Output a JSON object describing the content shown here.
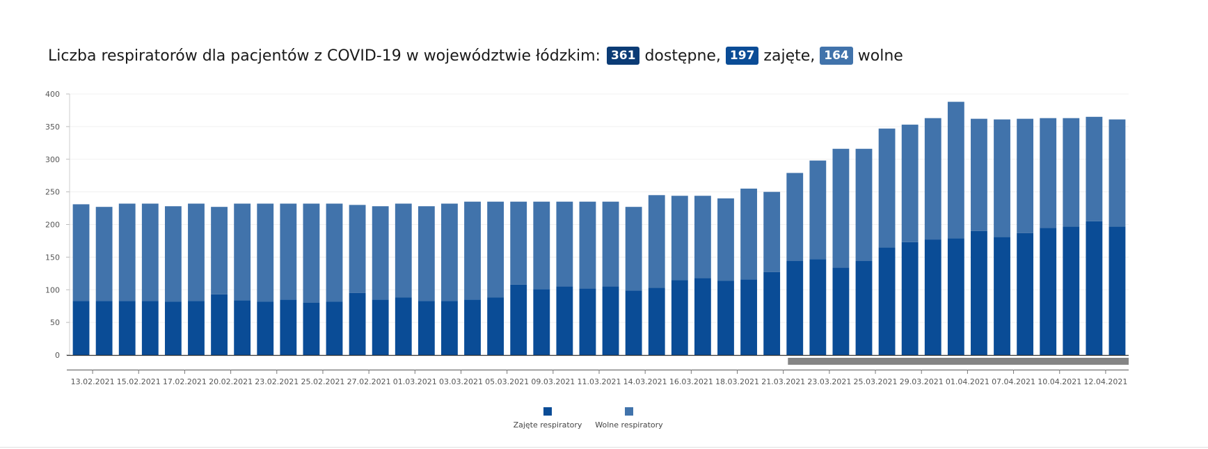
{
  "title": {
    "text": "Liczba respiratorów dla pacjentów z COVID-19 w województwie łódzkim:",
    "available_value": "361",
    "available_label": "dostępne,",
    "occupied_value": "197",
    "occupied_label": "zajęte,",
    "free_value": "164",
    "free_label": "wolne"
  },
  "colors": {
    "occupied": "#0a4c96",
    "free": "#4173ab",
    "badge_available": "#0b3b75",
    "badge_occupied": "#0a4c96",
    "badge_free": "#4173ab",
    "scrollbar": "#858585",
    "axis": "#333333",
    "grid": "#f0f0f0",
    "tick_text": "#555555"
  },
  "chart_data": {
    "type": "bar",
    "stacked": true,
    "title": "Liczba respiratorów dla pacjentów z COVID-19 w województwie łódzkim: 361 dostępne, 197 zajęte, 164 wolne",
    "xlabel": "",
    "ylabel": "",
    "ylim": [
      0,
      400
    ],
    "yticks": [
      0,
      50,
      100,
      150,
      200,
      250,
      300,
      350,
      400
    ],
    "grid": true,
    "legend_position": "bottom-center",
    "xtick_labels": [
      {
        "index": 1,
        "label": "13.02.2021"
      },
      {
        "index": 3,
        "label": "15.02.2021"
      },
      {
        "index": 5,
        "label": "17.02.2021"
      },
      {
        "index": 7,
        "label": "20.02.2021"
      },
      {
        "index": 9,
        "label": "23.02.2021"
      },
      {
        "index": 11,
        "label": "25.02.2021"
      },
      {
        "index": 13,
        "label": "27.02.2021"
      },
      {
        "index": 15,
        "label": "01.03.2021"
      },
      {
        "index": 17,
        "label": "03.03.2021"
      },
      {
        "index": 19,
        "label": "05.03.2021"
      },
      {
        "index": 21,
        "label": "09.03.2021"
      },
      {
        "index": 23,
        "label": "11.03.2021"
      },
      {
        "index": 25,
        "label": "14.03.2021"
      },
      {
        "index": 27,
        "label": "16.03.2021"
      },
      {
        "index": 29,
        "label": "18.03.2021"
      },
      {
        "index": 31,
        "label": "21.03.2021"
      },
      {
        "index": 33,
        "label": "23.03.2021"
      },
      {
        "index": 35,
        "label": "25.03.2021"
      },
      {
        "index": 37,
        "label": "29.03.2021"
      },
      {
        "index": 39,
        "label": "01.04.2021"
      },
      {
        "index": 41,
        "label": "07.04.2021"
      },
      {
        "index": 43,
        "label": "10.04.2021"
      },
      {
        "index": 45,
        "label": "12.04.2021"
      }
    ],
    "series": [
      {
        "name": "Zajęte respiratory",
        "values": [
          83,
          83,
          83,
          83,
          82,
          83,
          93,
          84,
          82,
          85,
          80,
          82,
          95,
          85,
          88,
          83,
          83,
          85,
          88,
          108,
          101,
          105,
          102,
          105,
          99,
          103,
          115,
          118,
          114,
          116,
          127,
          144,
          147,
          134,
          144,
          165,
          173,
          177,
          179,
          190,
          181,
          187,
          195,
          197,
          205,
          197
        ]
      },
      {
        "name": "Wolne respiratory",
        "values": [
          148,
          144,
          149,
          149,
          146,
          149,
          134,
          148,
          150,
          147,
          152,
          150,
          135,
          143,
          144,
          145,
          149,
          150,
          147,
          127,
          134,
          130,
          133,
          130,
          128,
          142,
          129,
          126,
          126,
          139,
          123,
          135,
          151,
          182,
          172,
          182,
          180,
          186,
          209,
          172,
          180,
          175,
          168,
          166,
          160,
          164
        ]
      }
    ]
  },
  "legend": {
    "items": [
      "Zajęte respiratory",
      "Wolne respiratory"
    ]
  }
}
